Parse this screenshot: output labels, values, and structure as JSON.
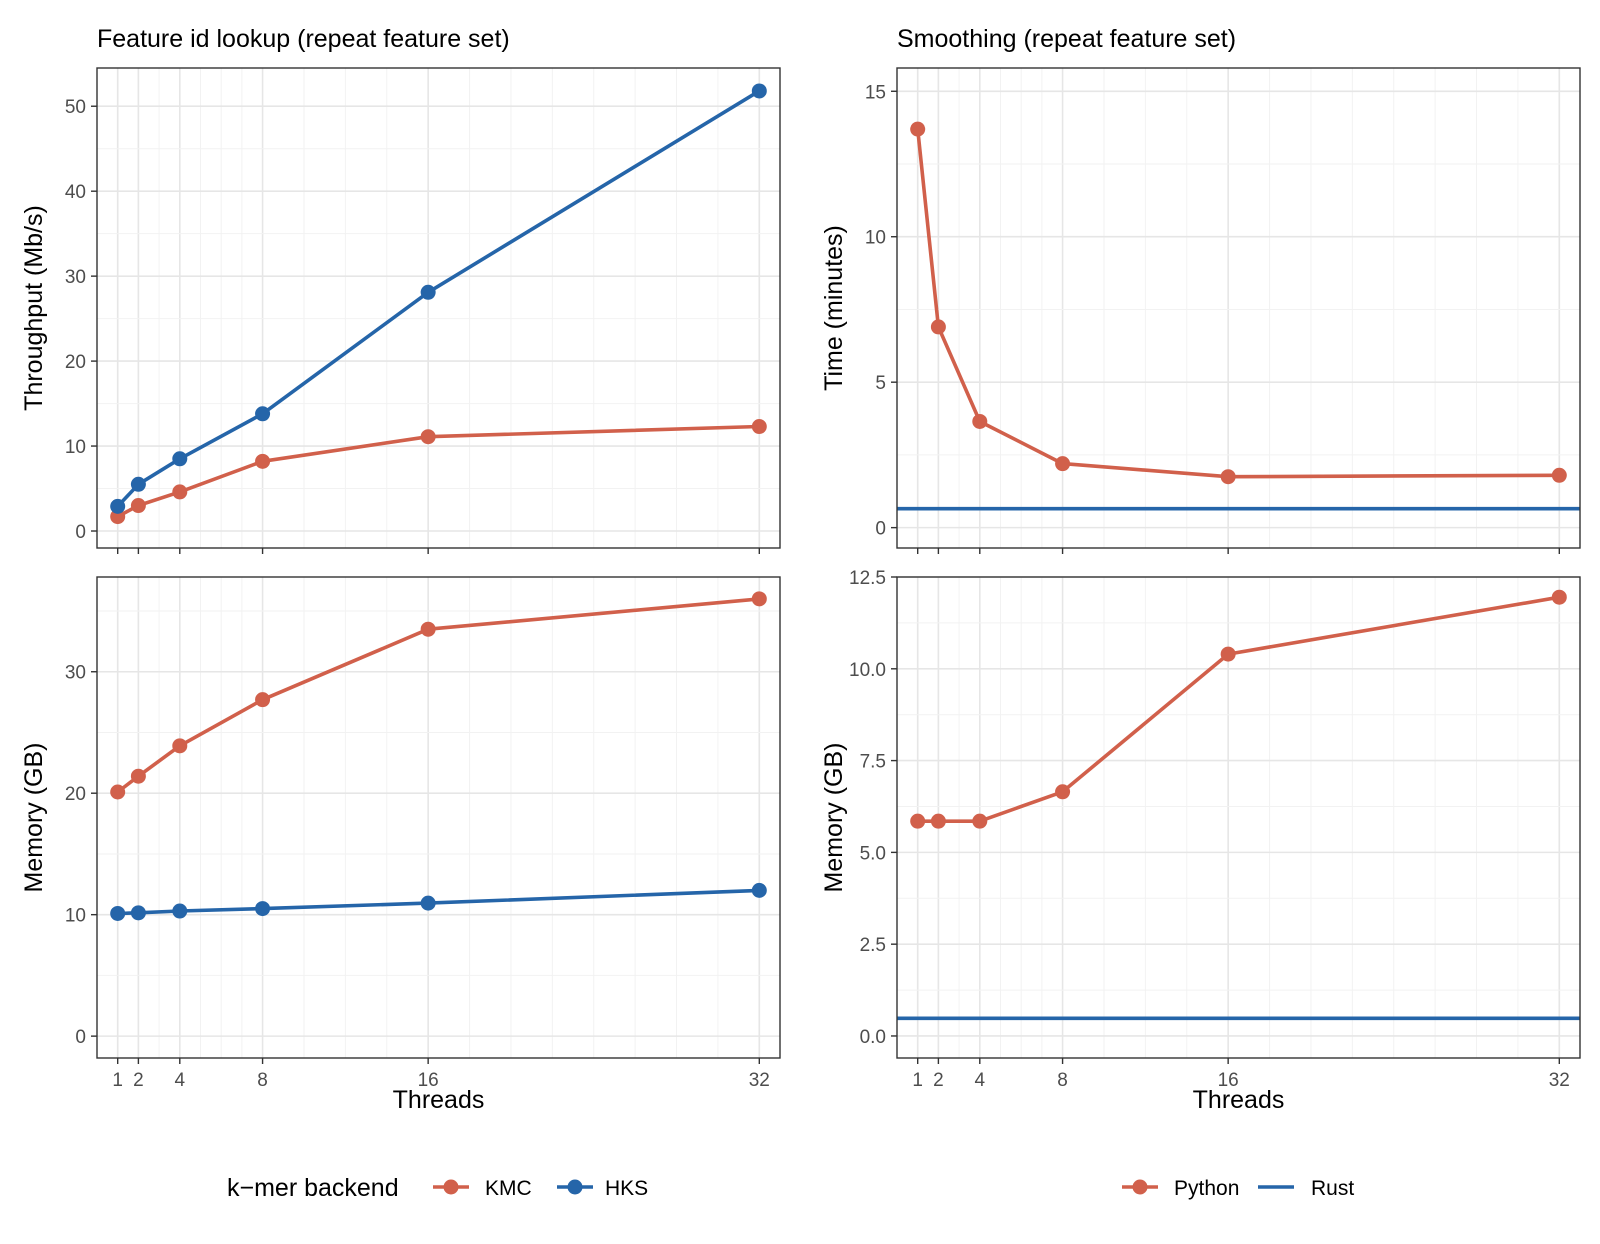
{
  "colors": {
    "KMC": "#d1604b",
    "HKS": "#2565a9",
    "Python": "#d1604b",
    "Rust": "#2565a9"
  },
  "chart_data": [
    {
      "id": "throughput",
      "type": "line",
      "title": "Feature id lookup (repeat feature set)",
      "xlabel": "",
      "ylabel": "Throughput (Mb/s)",
      "xlim": [
        0,
        33
      ],
      "ylim": [
        -2,
        54.5
      ],
      "yticks": [
        0,
        10,
        20,
        30,
        40,
        50
      ],
      "ytick_labels": [
        "0",
        "10",
        "20",
        "30",
        "40",
        "50"
      ],
      "x_tick_labels_visible": false,
      "grid": true,
      "series": [
        {
          "name": "KMC",
          "x": [
            1,
            2,
            4,
            8,
            16,
            32
          ],
          "y": [
            1.7,
            3.0,
            4.6,
            8.2,
            11.1,
            12.3
          ]
        },
        {
          "name": "HKS",
          "x": [
            1,
            2,
            4,
            8,
            16,
            32
          ],
          "y": [
            2.9,
            5.5,
            8.5,
            13.8,
            28.1,
            51.8
          ]
        }
      ]
    },
    {
      "id": "smoothing_time",
      "type": "line",
      "title": "Smoothing (repeat feature set)",
      "xlabel": "",
      "ylabel": "Time (minutes)",
      "xlim": [
        0,
        33
      ],
      "ylim": [
        -0.7,
        15.8
      ],
      "yticks": [
        0,
        5,
        10,
        15
      ],
      "ytick_labels": [
        "0",
        "5",
        "10",
        "15"
      ],
      "x_tick_labels_visible": false,
      "grid": true,
      "series": [
        {
          "name": "Python",
          "x": [
            1,
            2,
            4,
            8,
            16,
            32
          ],
          "y": [
            13.7,
            6.9,
            3.65,
            2.2,
            1.75,
            1.8
          ]
        },
        {
          "name": "Rust",
          "hline": 0.65
        }
      ]
    },
    {
      "id": "memory_kmer",
      "type": "line",
      "title": "",
      "xlabel": "Threads",
      "ylabel": "Memory (GB)",
      "xlim": [
        0,
        33
      ],
      "ylim": [
        -1.8,
        37.8
      ],
      "yticks": [
        0,
        10,
        20,
        30
      ],
      "ytick_labels": [
        "0",
        "10",
        "20",
        "30"
      ],
      "xticks": [
        1,
        2,
        4,
        8,
        16,
        32
      ],
      "xtick_labels": [
        "1",
        "2",
        "4",
        "8",
        "16",
        "32"
      ],
      "x_tick_labels_visible": true,
      "grid": true,
      "series": [
        {
          "name": "KMC",
          "x": [
            1,
            2,
            4,
            8,
            16,
            32
          ],
          "y": [
            20.1,
            21.4,
            23.9,
            27.7,
            33.5,
            36.0
          ]
        },
        {
          "name": "HKS",
          "x": [
            1,
            2,
            4,
            8,
            16,
            32
          ],
          "y": [
            10.1,
            10.15,
            10.3,
            10.5,
            10.95,
            12.0
          ]
        }
      ]
    },
    {
      "id": "memory_smoothing",
      "type": "line",
      "title": "",
      "xlabel": "Threads",
      "ylabel": "Memory (GB)",
      "xlim": [
        0,
        33
      ],
      "ylim": [
        -0.6,
        12.5
      ],
      "yticks": [
        0,
        2.5,
        5,
        7.5,
        10,
        12.5
      ],
      "ytick_labels": [
        "0.0",
        "2.5",
        "5.0",
        "7.5",
        "10.0",
        "12.5"
      ],
      "xticks": [
        1,
        2,
        4,
        8,
        16,
        32
      ],
      "xtick_labels": [
        "1",
        "2",
        "4",
        "8",
        "16",
        "32"
      ],
      "x_tick_labels_visible": true,
      "grid": true,
      "series": [
        {
          "name": "Python",
          "x": [
            1,
            2,
            4,
            8,
            16,
            32
          ],
          "y": [
            5.85,
            5.85,
            5.85,
            6.65,
            10.4,
            11.95
          ]
        },
        {
          "name": "Rust",
          "hline": 0.48
        }
      ]
    }
  ],
  "legends": [
    {
      "title": "k−mer backend",
      "items": [
        {
          "label": "KMC",
          "kind": "line-point"
        },
        {
          "label": "HKS",
          "kind": "line-point"
        }
      ]
    },
    {
      "title": "",
      "items": [
        {
          "label": "Python",
          "kind": "line-point"
        },
        {
          "label": "Rust",
          "kind": "line"
        }
      ]
    }
  ]
}
